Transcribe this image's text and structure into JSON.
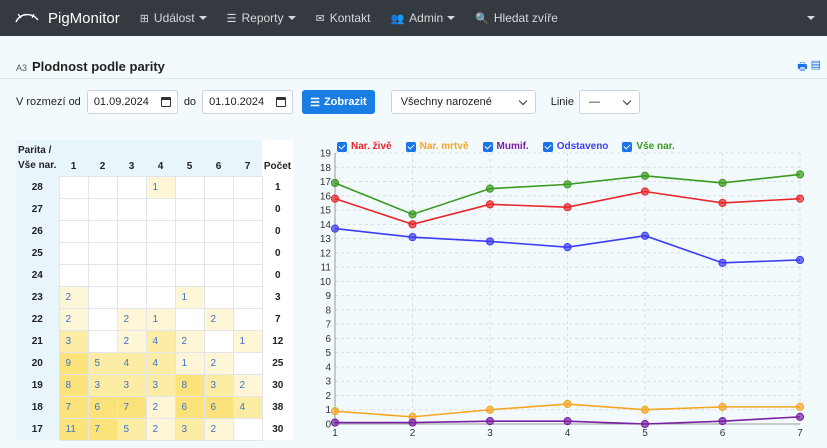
{
  "nav": {
    "brand": "PigMonitor",
    "items": [
      {
        "label": "Událost",
        "icon": "plus-square-icon",
        "dropdown": true
      },
      {
        "label": "Reporty",
        "icon": "list-icon",
        "dropdown": true
      },
      {
        "label": "Kontakt",
        "icon": "envelope-icon",
        "dropdown": false
      },
      {
        "label": "Admin",
        "icon": "users-icon",
        "dropdown": true
      },
      {
        "label": "Hledat zvíře",
        "icon": "search-icon",
        "dropdown": false
      }
    ]
  },
  "page": {
    "code": "A3",
    "title": "Plodnost podle parity"
  },
  "filter": {
    "from_label": "V rozmezí od",
    "from_date": "01.09.2024",
    "to_label": "do",
    "to_date": "01.10.2024",
    "show_button": "Zobrazit",
    "select_value": "Všechny narozené",
    "line_label": "Linie",
    "line_value": "—"
  },
  "table": {
    "header_row_label_1": "Parita /",
    "header_row_label_2": "Vše nar.",
    "columns": [
      "1",
      "2",
      "3",
      "4",
      "5",
      "6",
      "7"
    ],
    "count_label": "Počet",
    "rows": [
      {
        "label": "28",
        "cells": [
          "",
          "",
          "",
          "1",
          "",
          "",
          ""
        ],
        "total": "1"
      },
      {
        "label": "27",
        "cells": [
          "",
          "",
          "",
          "",
          "",
          "",
          ""
        ],
        "total": "0"
      },
      {
        "label": "26",
        "cells": [
          "",
          "",
          "",
          "",
          "",
          "",
          ""
        ],
        "total": "0"
      },
      {
        "label": "25",
        "cells": [
          "",
          "",
          "",
          "",
          "",
          "",
          ""
        ],
        "total": "0"
      },
      {
        "label": "24",
        "cells": [
          "",
          "",
          "",
          "",
          "",
          "",
          ""
        ],
        "total": "0"
      },
      {
        "label": "23",
        "cells": [
          "2",
          "",
          "",
          "",
          "1",
          "",
          ""
        ],
        "total": "3"
      },
      {
        "label": "22",
        "cells": [
          "2",
          "",
          "2",
          "1",
          "",
          "2",
          ""
        ],
        "total": "7"
      },
      {
        "label": "21",
        "cells": [
          "3",
          "",
          "2",
          "4",
          "2",
          "",
          "1"
        ],
        "total": "12"
      },
      {
        "label": "20",
        "cells": [
          "9",
          "5",
          "4",
          "4",
          "1",
          "2",
          ""
        ],
        "total": "25"
      },
      {
        "label": "19",
        "cells": [
          "8",
          "3",
          "3",
          "3",
          "8",
          "3",
          "2"
        ],
        "total": "30"
      },
      {
        "label": "18",
        "cells": [
          "7",
          "6",
          "7",
          "2",
          "6",
          "6",
          "4"
        ],
        "total": "38"
      },
      {
        "label": "17",
        "cells": [
          "11",
          "7",
          "5",
          "2",
          "3",
          "2",
          ""
        ],
        "total": "30"
      }
    ]
  },
  "colors": {
    "live": "#e8262b",
    "dead": "#f5a623",
    "mummified": "#7a1fa2",
    "weaned": "#3c3cf0",
    "all": "#3a9a1e",
    "accent": "#1a7de3"
  },
  "chart_data": {
    "type": "line",
    "x": [
      1,
      2,
      3,
      4,
      5,
      6,
      7
    ],
    "ylim": [
      0,
      19
    ],
    "yticks": [
      0,
      1,
      2,
      3,
      4,
      5,
      6,
      7,
      8,
      9,
      10,
      11,
      12,
      13,
      14,
      15,
      16,
      17,
      18,
      19
    ],
    "grid": true,
    "legend": "top-left",
    "series": [
      {
        "name": "Nar. živě",
        "color": "#e8262b",
        "values": [
          15.8,
          14.0,
          15.4,
          15.2,
          16.3,
          15.5,
          15.8
        ]
      },
      {
        "name": "Nar. mrtvě",
        "color": "#f5a623",
        "values": [
          0.9,
          0.5,
          1.0,
          1.4,
          1.0,
          1.2,
          1.2
        ]
      },
      {
        "name": "Mumif.",
        "color": "#7a1fa2",
        "values": [
          0.1,
          0.1,
          0.2,
          0.2,
          0.0,
          0.2,
          0.5
        ]
      },
      {
        "name": "Odstaveno",
        "color": "#3c3cf0",
        "values": [
          13.7,
          13.1,
          12.8,
          12.4,
          13.2,
          11.3,
          11.5
        ]
      },
      {
        "name": "Vše nar.",
        "color": "#3a9a1e",
        "values": [
          16.9,
          14.7,
          16.5,
          16.8,
          17.4,
          16.9,
          17.5
        ]
      }
    ]
  }
}
